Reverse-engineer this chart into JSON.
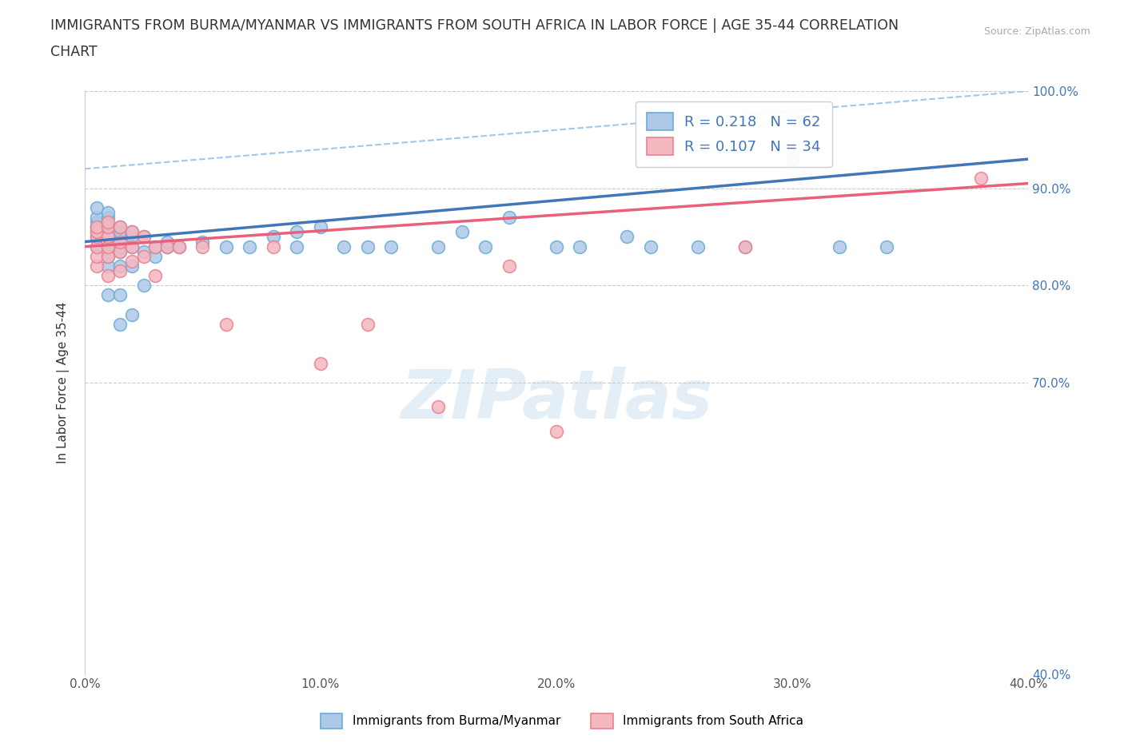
{
  "title_line1": "IMMIGRANTS FROM BURMA/MYANMAR VS IMMIGRANTS FROM SOUTH AFRICA IN LABOR FORCE | AGE 35-44 CORRELATION",
  "title_line2": "CHART",
  "source_text": "Source: ZipAtlas.com",
  "ylabel": "In Labor Force | Age 35-44",
  "xlim": [
    0.0,
    0.4
  ],
  "ylim": [
    0.4,
    1.0
  ],
  "ytick_labels": [
    "40.0%",
    "70.0%",
    "80.0%",
    "90.0%",
    "100.0%"
  ],
  "ytick_values": [
    0.4,
    0.7,
    0.8,
    0.9,
    1.0
  ],
  "xtick_labels": [
    "0.0%",
    "10.0%",
    "20.0%",
    "30.0%",
    "40.0%"
  ],
  "xtick_values": [
    0.0,
    0.1,
    0.2,
    0.3,
    0.4
  ],
  "blue_scatter_color": "#aec8e8",
  "blue_edge_color": "#6aabd6",
  "pink_scatter_color": "#f4b8c1",
  "pink_edge_color": "#e8818e",
  "blue_line_color": "#4176b8",
  "pink_line_color": "#e8607a",
  "dashed_line_color": "#a0c8e8",
  "watermark": "ZIPatlas",
  "blue_x": [
    0.005,
    0.005,
    0.005,
    0.005,
    0.005,
    0.005,
    0.005,
    0.005,
    0.01,
    0.01,
    0.01,
    0.01,
    0.01,
    0.01,
    0.01,
    0.01,
    0.01,
    0.01,
    0.015,
    0.015,
    0.015,
    0.015,
    0.015,
    0.015,
    0.015,
    0.015,
    0.02,
    0.02,
    0.02,
    0.02,
    0.02,
    0.025,
    0.025,
    0.025,
    0.03,
    0.03,
    0.035,
    0.035,
    0.04,
    0.05,
    0.06,
    0.07,
    0.08,
    0.09,
    0.09,
    0.1,
    0.11,
    0.12,
    0.13,
    0.15,
    0.16,
    0.17,
    0.18,
    0.2,
    0.21,
    0.23,
    0.24,
    0.26,
    0.28,
    0.3,
    0.32,
    0.34
  ],
  "blue_y": [
    0.84,
    0.85,
    0.855,
    0.86,
    0.86,
    0.865,
    0.87,
    0.88,
    0.79,
    0.82,
    0.83,
    0.84,
    0.84,
    0.85,
    0.86,
    0.86,
    0.87,
    0.875,
    0.76,
    0.79,
    0.82,
    0.835,
    0.84,
    0.85,
    0.855,
    0.86,
    0.77,
    0.82,
    0.84,
    0.85,
    0.855,
    0.8,
    0.835,
    0.85,
    0.83,
    0.84,
    0.84,
    0.845,
    0.84,
    0.845,
    0.84,
    0.84,
    0.85,
    0.84,
    0.855,
    0.86,
    0.84,
    0.84,
    0.84,
    0.84,
    0.855,
    0.84,
    0.87,
    0.84,
    0.84,
    0.85,
    0.84,
    0.84,
    0.84,
    0.93,
    0.84,
    0.84
  ],
  "pink_x": [
    0.005,
    0.005,
    0.005,
    0.005,
    0.005,
    0.005,
    0.01,
    0.01,
    0.01,
    0.01,
    0.01,
    0.01,
    0.015,
    0.015,
    0.015,
    0.015,
    0.02,
    0.02,
    0.02,
    0.025,
    0.025,
    0.03,
    0.03,
    0.035,
    0.04,
    0.05,
    0.06,
    0.08,
    0.1,
    0.12,
    0.15,
    0.18,
    0.2,
    0.28,
    0.38
  ],
  "pink_y": [
    0.82,
    0.83,
    0.84,
    0.85,
    0.855,
    0.86,
    0.81,
    0.83,
    0.84,
    0.85,
    0.86,
    0.865,
    0.815,
    0.835,
    0.845,
    0.86,
    0.825,
    0.84,
    0.855,
    0.83,
    0.85,
    0.81,
    0.84,
    0.84,
    0.84,
    0.84,
    0.76,
    0.84,
    0.72,
    0.76,
    0.675,
    0.82,
    0.65,
    0.84,
    0.91
  ]
}
